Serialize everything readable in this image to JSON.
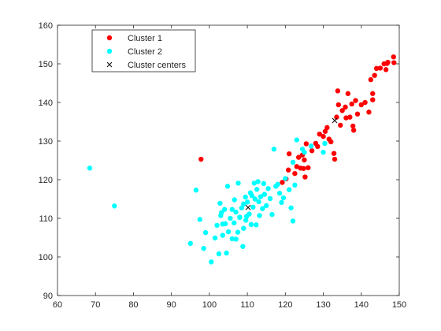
{
  "chart_data": {
    "type": "scatter",
    "title": "",
    "xlabel": "",
    "ylabel": "",
    "xlim": [
      60,
      150
    ],
    "ylim": [
      90,
      160
    ],
    "xticks": [
      60,
      70,
      80,
      90,
      100,
      110,
      120,
      130,
      140,
      150
    ],
    "yticks": [
      90,
      100,
      110,
      120,
      130,
      140,
      150,
      160
    ],
    "grid": false,
    "legend_position": "top-left",
    "series": [
      {
        "name": "Cluster 1",
        "color": "#ff0000",
        "marker": "circle",
        "points": [
          [
            97.8,
            125.3
          ],
          [
            119.2,
            119.3
          ],
          [
            120.2,
            120.2
          ],
          [
            120.8,
            122.5
          ],
          [
            121.0,
            126.7
          ],
          [
            122.5,
            121.6
          ],
          [
            123.0,
            123.4
          ],
          [
            123.5,
            125.8
          ],
          [
            124.0,
            123.0
          ],
          [
            124.5,
            126.4
          ],
          [
            125.0,
            125.1
          ],
          [
            124.8,
            122.9
          ],
          [
            125.2,
            120.7
          ],
          [
            126.0,
            123.1
          ],
          [
            125.5,
            129.3
          ],
          [
            127.0,
            127.5
          ],
          [
            128.0,
            129.4
          ],
          [
            128.5,
            128.6
          ],
          [
            129.0,
            131.8
          ],
          [
            130.0,
            131.2
          ],
          [
            130.5,
            132.5
          ],
          [
            131.0,
            133.5
          ],
          [
            131.5,
            130.5
          ],
          [
            132.0,
            129.8
          ],
          [
            132.8,
            126.8
          ],
          [
            133.0,
            125.3
          ],
          [
            133.5,
            136.2
          ],
          [
            134.0,
            139.4
          ],
          [
            133.8,
            143.0
          ],
          [
            134.5,
            134.1
          ],
          [
            135.0,
            137.9
          ],
          [
            135.8,
            138.8
          ],
          [
            136.0,
            136.0
          ],
          [
            136.5,
            142.3
          ],
          [
            137.0,
            136.2
          ],
          [
            137.5,
            139.6
          ],
          [
            137.8,
            133.9
          ],
          [
            138.0,
            132.8
          ],
          [
            138.5,
            140.5
          ],
          [
            139.0,
            137.0
          ],
          [
            140.0,
            139.4
          ],
          [
            141.0,
            140.0
          ],
          [
            142.0,
            137.5
          ],
          [
            142.5,
            145.9
          ],
          [
            143.0,
            140.7
          ],
          [
            143.0,
            142.3
          ],
          [
            143.5,
            147.0
          ],
          [
            144.0,
            148.8
          ],
          [
            145.0,
            148.9
          ],
          [
            146.0,
            150.0
          ],
          [
            146.5,
            148.5
          ],
          [
            147.0,
            150.4
          ],
          [
            148.5,
            151.8
          ],
          [
            148.6,
            150.3
          ],
          [
            146.8,
            150.1
          ]
        ]
      },
      {
        "name": "Cluster 2",
        "color": "#00ffff",
        "marker": "circle",
        "points": [
          [
            68.5,
            123.0
          ],
          [
            75.0,
            113.2
          ],
          [
            95.0,
            103.5
          ],
          [
            96.5,
            117.3
          ],
          [
            97.5,
            109.7
          ],
          [
            98.5,
            102.2
          ],
          [
            99.0,
            106.3
          ],
          [
            100.5,
            98.7
          ],
          [
            101.5,
            104.9
          ],
          [
            102.0,
            108.2
          ],
          [
            102.5,
            100.8
          ],
          [
            103.0,
            110.7
          ],
          [
            102.8,
            113.9
          ],
          [
            103.5,
            105.6
          ],
          [
            104.0,
            112.3
          ],
          [
            103.5,
            108.5
          ],
          [
            104.5,
            101.0
          ],
          [
            104.8,
            118.3
          ],
          [
            105.0,
            106.5
          ],
          [
            105.5,
            110.0
          ],
          [
            106.0,
            104.7
          ],
          [
            106.0,
            112.3
          ],
          [
            106.5,
            108.8
          ],
          [
            107.0,
            104.6
          ],
          [
            107.0,
            111.6
          ],
          [
            107.5,
            106.4
          ],
          [
            107.6,
            119.1
          ],
          [
            108.0,
            110.3
          ],
          [
            108.5,
            112.7
          ],
          [
            108.8,
            102.7
          ],
          [
            109.0,
            107.4
          ],
          [
            109.0,
            113.7
          ],
          [
            109.5,
            115.5
          ],
          [
            109.8,
            110.5
          ],
          [
            110.0,
            114.2
          ],
          [
            110.5,
            111.1
          ],
          [
            110.8,
            116.6
          ],
          [
            111.0,
            108.4
          ],
          [
            111.5,
            112.9
          ],
          [
            111.8,
            119.1
          ],
          [
            112.0,
            115.0
          ],
          [
            112.3,
            108.3
          ],
          [
            112.5,
            117.5
          ],
          [
            113.0,
            114.3
          ],
          [
            113.2,
            110.7
          ],
          [
            113.5,
            115.6
          ],
          [
            114.0,
            112.5
          ],
          [
            114.3,
            119.0
          ],
          [
            114.5,
            116.2
          ],
          [
            115.0,
            113.3
          ],
          [
            115.5,
            117.7
          ],
          [
            116.0,
            115.1
          ],
          [
            116.5,
            111.0
          ],
          [
            117.0,
            127.9
          ],
          [
            117.5,
            118.3
          ],
          [
            118.0,
            118.8
          ],
          [
            118.5,
            116.5
          ],
          [
            119.0,
            114.1
          ],
          [
            119.5,
            115.3
          ],
          [
            120.0,
            120.3
          ],
          [
            121.0,
            117.4
          ],
          [
            121.5,
            112.7
          ],
          [
            122.0,
            124.5
          ],
          [
            122.0,
            109.3
          ],
          [
            122.5,
            118.6
          ],
          [
            123.0,
            130.3
          ],
          [
            124.5,
            127.9
          ],
          [
            125.0,
            127.1
          ],
          [
            126.8,
            128.7
          ],
          [
            130.0,
            127.1
          ],
          [
            130.4,
            129.4
          ],
          [
            108.0,
            110.2
          ],
          [
            104.2,
            108.6
          ],
          [
            109.6,
            109.5
          ],
          [
            111.2,
            115.9
          ],
          [
            106.6,
            114.8
          ],
          [
            112.8,
            119.5
          ],
          [
            103.2,
            111.5
          ]
        ]
      },
      {
        "name": "Cluster centers",
        "color": "#000000",
        "marker": "x",
        "points": [
          [
            110.2,
            112.8
          ],
          [
            133.0,
            135.3
          ]
        ]
      }
    ]
  }
}
